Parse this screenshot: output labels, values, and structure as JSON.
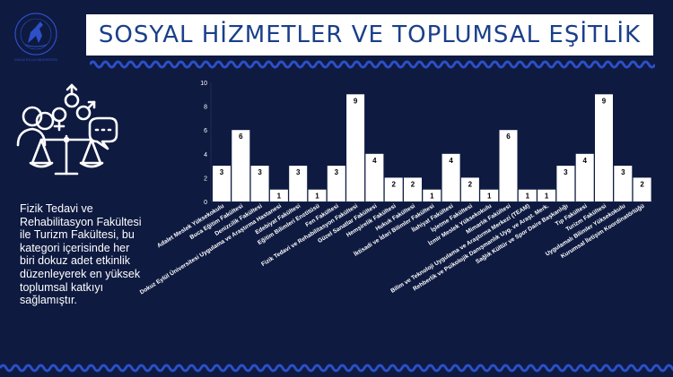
{
  "title": "SOSYAL HİZMETLER VE TOPLUMSAL EŞİTLİK",
  "description": "Fizik Tedavi ve Rehabilitasyon Fakültesi ile Turizm Fakültesi, bu kategori içerisinde her biri dokuz adet etkinlik düzenleyerek en yüksek toplumsal katkıyı sağlamıştır.",
  "logo": {
    "name": "university-seal-icon",
    "text": "DOKUZ EYLÜL ÜNİVERSİTESİ"
  },
  "icon": "social-equality-icon",
  "colors": {
    "background": "#0e1a40",
    "bar": "#ffffff",
    "title": "#1a3f8a",
    "axis": "#ffffff",
    "wave": "#2d4fc7"
  },
  "chart_data": {
    "type": "bar",
    "ylim": [
      0,
      10
    ],
    "yticks": [
      0,
      2,
      4,
      6,
      8,
      10
    ],
    "categories": [
      "Adalet Meslek Yüksekokulu",
      "Buca Eğitim Fakültesi",
      "Denizcilik Fakültesi",
      "Dokuz Eylül Üniversitesi Uygulama ve Araştırma Hastanesi",
      "Edebiyat Fakültesi",
      "Eğitim Bilimleri Enstitüsü",
      "Fen Fakültesi",
      "Fizik Tedavi ve Rehabilitasyon Fakültesi",
      "Güzel Sanatlar Fakültesi",
      "Hemşirelik Fakültesi",
      "Hukuk Fakültesi",
      "İktisadi ve İdari Bilimler Fakültesi",
      "İlahiyat Fakültesi",
      "İşletme Fakültesi",
      "İzmir Meslek Yüksekokulu",
      "Mimarlık Fakültesi",
      "Bilim ve Teknoloji Uygulama ve Araştırma Merkezi (TEAM)",
      "Rehberlik ve Psikolojik Danışmanlık Uyg. ve Araşt. Merk.",
      "Sağlık Kültür ve Spor Daire Başkanlığı",
      "Tıp Fakültesi",
      "Turizm Fakültesi",
      "Uygulamalı Bilimler Yüksekokulu",
      "Kurumsal İletişim Koordinatörlüğü"
    ],
    "values": [
      3,
      6,
      3,
      1,
      3,
      1,
      3,
      9,
      4,
      2,
      2,
      1,
      4,
      2,
      1,
      6,
      1,
      1,
      3,
      4,
      9,
      3,
      2
    ]
  }
}
